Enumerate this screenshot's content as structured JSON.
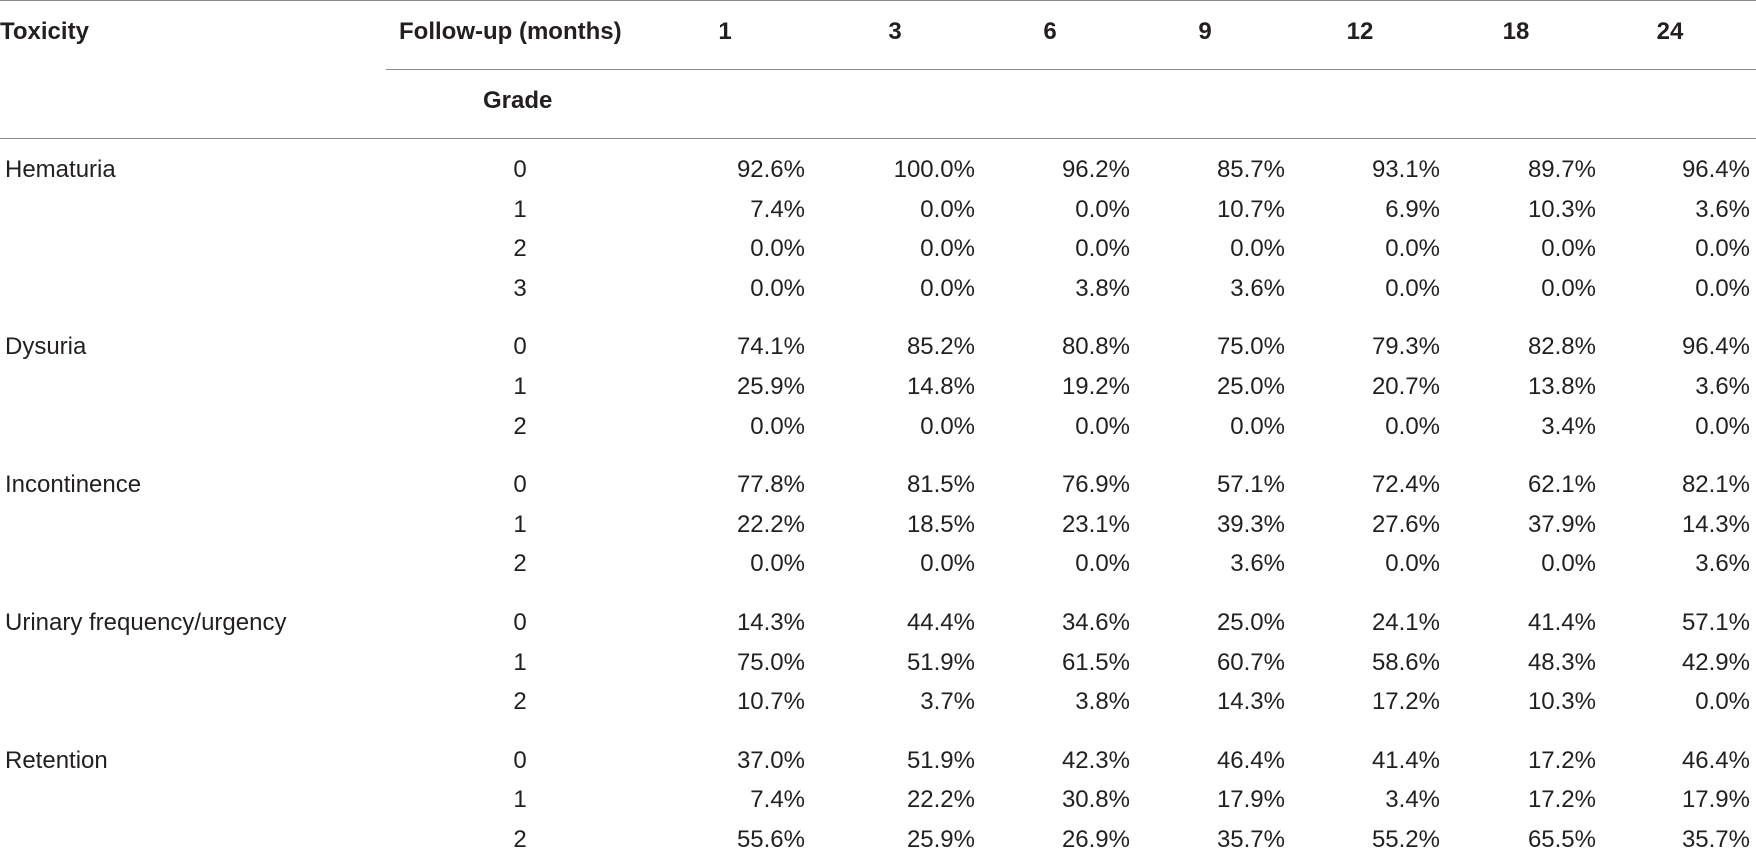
{
  "table": {
    "header": {
      "toxicity": "Toxicity",
      "follow_up": "Follow-up (months)",
      "grade": "Grade",
      "months": [
        "1",
        "3",
        "6",
        "9",
        "12",
        "18",
        "24"
      ]
    },
    "groups": [
      {
        "toxicity": "Hematuria",
        "rows": [
          {
            "grade": "0",
            "values": [
              "92.6%",
              "100.0%",
              "96.2%",
              "85.7%",
              "93.1%",
              "89.7%",
              "96.4%"
            ]
          },
          {
            "grade": "1",
            "values": [
              "7.4%",
              "0.0%",
              "0.0%",
              "10.7%",
              "6.9%",
              "10.3%",
              "3.6%"
            ]
          },
          {
            "grade": "2",
            "values": [
              "0.0%",
              "0.0%",
              "0.0%",
              "0.0%",
              "0.0%",
              "0.0%",
              "0.0%"
            ]
          },
          {
            "grade": "3",
            "values": [
              "0.0%",
              "0.0%",
              "3.8%",
              "3.6%",
              "0.0%",
              "0.0%",
              "0.0%"
            ]
          }
        ]
      },
      {
        "toxicity": "Dysuria",
        "rows": [
          {
            "grade": "0",
            "values": [
              "74.1%",
              "85.2%",
              "80.8%",
              "75.0%",
              "79.3%",
              "82.8%",
              "96.4%"
            ]
          },
          {
            "grade": "1",
            "values": [
              "25.9%",
              "14.8%",
              "19.2%",
              "25.0%",
              "20.7%",
              "13.8%",
              "3.6%"
            ]
          },
          {
            "grade": "2",
            "values": [
              "0.0%",
              "0.0%",
              "0.0%",
              "0.0%",
              "0.0%",
              "3.4%",
              "0.0%"
            ]
          }
        ]
      },
      {
        "toxicity": "Incontinence",
        "rows": [
          {
            "grade": "0",
            "values": [
              "77.8%",
              "81.5%",
              "76.9%",
              "57.1%",
              "72.4%",
              "62.1%",
              "82.1%"
            ]
          },
          {
            "grade": "1",
            "values": [
              "22.2%",
              "18.5%",
              "23.1%",
              "39.3%",
              "27.6%",
              "37.9%",
              "14.3%"
            ]
          },
          {
            "grade": "2",
            "values": [
              "0.0%",
              "0.0%",
              "0.0%",
              "3.6%",
              "0.0%",
              "0.0%",
              "3.6%"
            ]
          }
        ]
      },
      {
        "toxicity": "Urinary frequency/urgency",
        "rows": [
          {
            "grade": "0",
            "values": [
              "14.3%",
              "44.4%",
              "34.6%",
              "25.0%",
              "24.1%",
              "41.4%",
              "57.1%"
            ]
          },
          {
            "grade": "1",
            "values": [
              "75.0%",
              "51.9%",
              "61.5%",
              "60.7%",
              "58.6%",
              "48.3%",
              "42.9%"
            ]
          },
          {
            "grade": "2",
            "values": [
              "10.7%",
              "3.7%",
              "3.8%",
              "14.3%",
              "17.2%",
              "10.3%",
              "0.0%"
            ]
          }
        ]
      },
      {
        "toxicity": "Retention",
        "rows": [
          {
            "grade": "0",
            "values": [
              "37.0%",
              "51.9%",
              "42.3%",
              "46.4%",
              "41.4%",
              "17.2%",
              "46.4%"
            ]
          },
          {
            "grade": "1",
            "values": [
              "7.4%",
              "22.2%",
              "30.8%",
              "17.9%",
              "3.4%",
              "17.2%",
              "17.9%"
            ]
          },
          {
            "grade": "2",
            "values": [
              "55.6%",
              "25.9%",
              "26.9%",
              "35.7%",
              "55.2%",
              "65.5%",
              "35.7%"
            ]
          }
        ]
      }
    ]
  }
}
